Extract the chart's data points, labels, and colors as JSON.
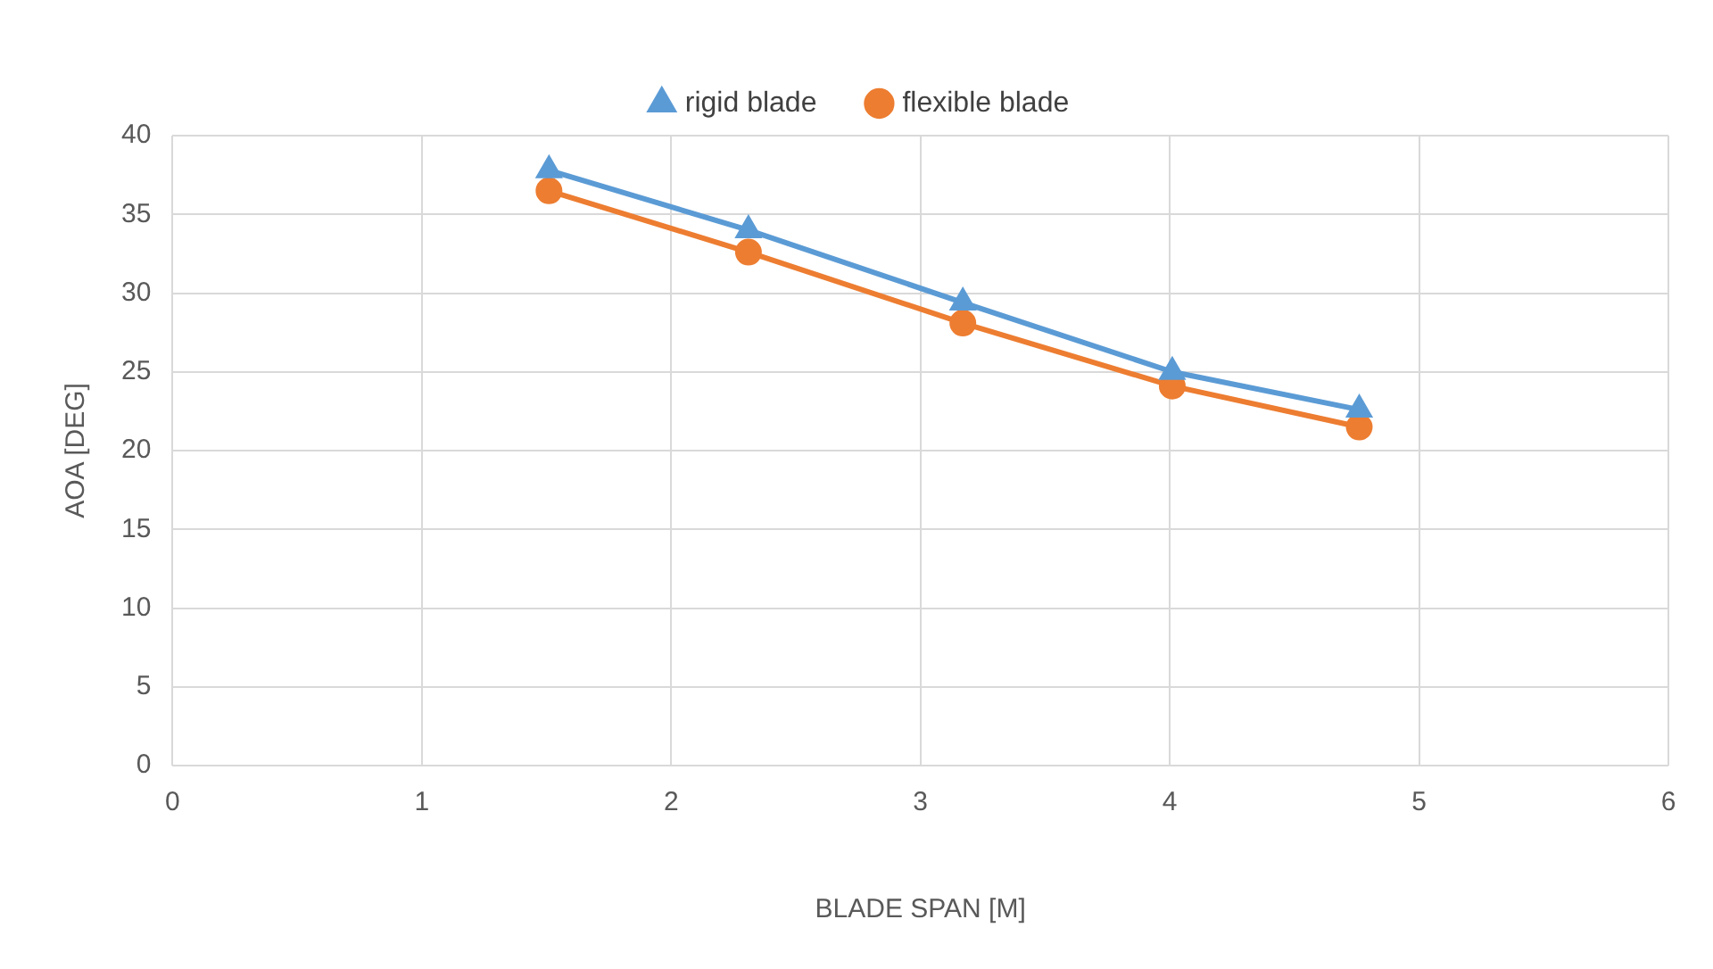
{
  "chart_data": {
    "type": "line",
    "xlabel": "BLADE SPAN [M]",
    "ylabel": "AOA [DEG]",
    "xlim": [
      0,
      6
    ],
    "xticks": [
      0,
      1,
      2,
      3,
      4,
      5,
      6
    ],
    "ylim": [
      0,
      40
    ],
    "yticks": [
      0,
      5,
      10,
      15,
      20,
      25,
      30,
      35,
      40
    ],
    "grid": true,
    "legend": "top",
    "line_style": "solid",
    "series": [
      {
        "name": "rigid blade",
        "color": "#5b9bd5",
        "marker": "triangle",
        "x": [
          1.51,
          2.31,
          3.17,
          4.01,
          4.76
        ],
        "values": [
          37.8,
          34.0,
          29.4,
          25.0,
          22.6
        ]
      },
      {
        "name": "flexible blade",
        "color": "#ed7d31",
        "marker": "circle",
        "x": [
          1.51,
          2.31,
          3.17,
          4.01,
          4.76
        ],
        "values": [
          36.5,
          32.6,
          28.1,
          24.1,
          21.5
        ]
      }
    ]
  }
}
